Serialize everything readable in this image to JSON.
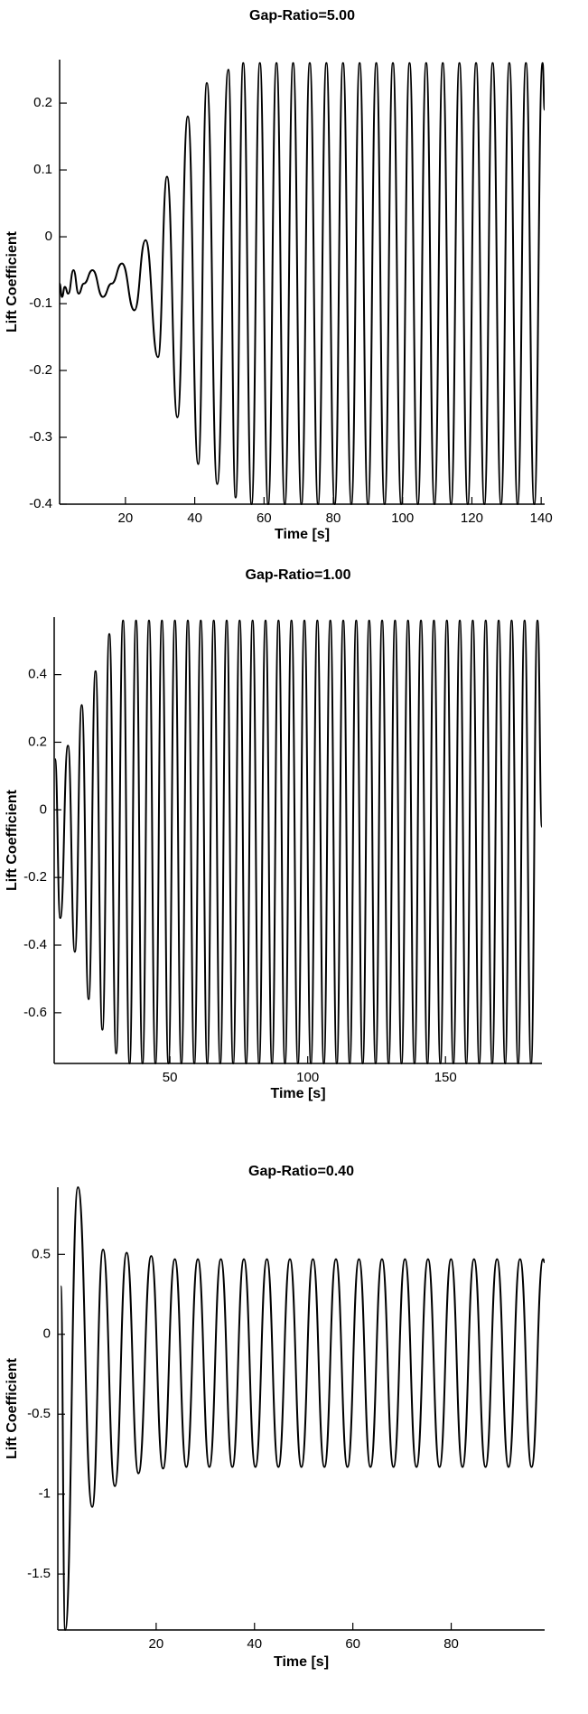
{
  "chart_data": [
    {
      "type": "line",
      "title": "Gap-Ratio=5.00",
      "x_label": "Time [s]",
      "y_label": "Lift Coefficient",
      "color": "#000000",
      "x": [
        1,
        1.7,
        2.5,
        3.5,
        5,
        6.5,
        8,
        10.5,
        13.5,
        16,
        19,
        22.6,
        25.8,
        29.4,
        32,
        35,
        38,
        41,
        43.5,
        46.5,
        49.7,
        51.8,
        54,
        56.4,
        58.8,
        61.2,
        63.6,
        66,
        68.4,
        70.8,
        73.2,
        75.6,
        78,
        80.4,
        82.8,
        85.2,
        87.6,
        90,
        92.4,
        94.8,
        97.2,
        99.6,
        102,
        104.4,
        106.8,
        109.2,
        111.6,
        114,
        116.4,
        118.8,
        121.2,
        123.6,
        126,
        128.4,
        130.8,
        133.2,
        135.6,
        138,
        140.4,
        141
      ],
      "values": [
        -0.07,
        -0.09,
        -0.075,
        -0.085,
        -0.05,
        -0.085,
        -0.07,
        -0.05,
        -0.09,
        -0.07,
        -0.04,
        -0.11,
        -0.005,
        -0.18,
        0.09,
        -0.27,
        0.18,
        -0.34,
        0.23,
        -0.37,
        0.25,
        -0.39,
        0.26,
        -0.4,
        0.26,
        -0.4,
        0.26,
        -0.4,
        0.26,
        -0.4,
        0.26,
        -0.4,
        0.26,
        -0.4,
        0.26,
        -0.4,
        0.26,
        -0.4,
        0.26,
        -0.4,
        0.26,
        -0.4,
        0.26,
        -0.4,
        0.26,
        -0.4,
        0.26,
        -0.4,
        0.26,
        -0.4,
        0.26,
        -0.4,
        0.26,
        -0.4,
        0.26,
        -0.4,
        0.26,
        -0.4,
        0.26,
        0.19
      ],
      "xlim": [
        1,
        141
      ],
      "ylim": [
        -0.4,
        0.265
      ],
      "xticks": [
        20,
        40,
        60,
        80,
        100,
        120,
        140
      ],
      "yticks": [
        -0.4,
        -0.3,
        -0.2,
        -0.1,
        0,
        0.1,
        0.2
      ]
    },
    {
      "type": "line",
      "title": "Gap-Ratio=1.00",
      "x_label": "Time [s]",
      "y_label": "Lift Coefficient",
      "color": "#000000",
      "x": [
        8.3,
        10.2,
        13,
        15.5,
        18,
        20.5,
        23,
        25.5,
        28,
        30.5,
        33,
        35.35,
        37.7,
        40.05,
        42.4,
        44.75,
        47.1,
        49.45,
        51.8,
        54.15,
        56.5,
        58.85,
        61.2,
        63.55,
        65.9,
        68.25,
        70.6,
        72.95,
        75.3,
        77.65,
        80,
        82.35,
        84.7,
        87.05,
        89.4,
        91.75,
        94.1,
        96.45,
        98.8,
        101.15,
        103.5,
        105.85,
        108.2,
        110.55,
        112.9,
        115.25,
        117.6,
        119.95,
        122.3,
        124.65,
        127,
        129.35,
        131.7,
        134.05,
        136.4,
        138.75,
        141.1,
        143.45,
        145.8,
        148.15,
        150.5,
        152.85,
        155.2,
        157.55,
        159.9,
        162.25,
        164.6,
        166.95,
        169.3,
        171.65,
        174,
        176.35,
        178.7,
        181.05,
        183.4,
        185
      ],
      "values": [
        0.15,
        -0.32,
        0.19,
        -0.42,
        0.31,
        -0.56,
        0.41,
        -0.65,
        0.52,
        -0.72,
        0.56,
        -0.75,
        0.56,
        -0.75,
        0.56,
        -0.75,
        0.56,
        -0.75,
        0.56,
        -0.75,
        0.56,
        -0.75,
        0.56,
        -0.75,
        0.56,
        -0.75,
        0.56,
        -0.75,
        0.56,
        -0.75,
        0.56,
        -0.75,
        0.56,
        -0.75,
        0.56,
        -0.75,
        0.56,
        -0.75,
        0.56,
        -0.75,
        0.56,
        -0.75,
        0.56,
        -0.75,
        0.56,
        -0.75,
        0.56,
        -0.75,
        0.56,
        -0.75,
        0.56,
        -0.75,
        0.56,
        -0.75,
        0.56,
        -0.75,
        0.56,
        -0.75,
        0.56,
        -0.75,
        0.56,
        -0.75,
        0.56,
        -0.75,
        0.56,
        -0.75,
        0.56,
        -0.75,
        0.56,
        -0.75,
        0.56,
        -0.75,
        0.56,
        -0.75,
        0.56,
        -0.05
      ],
      "xlim": [
        8,
        185
      ],
      "ylim": [
        -0.75,
        0.57
      ],
      "xticks": [
        50,
        100,
        150
      ],
      "yticks": [
        -0.6,
        -0.4,
        -0.2,
        0,
        0.2,
        0.4
      ]
    },
    {
      "type": "line",
      "title": "Gap-Ratio=0.40",
      "x_label": "Time [s]",
      "y_label": "Lift Coefficient",
      "color": "#000000",
      "x": [
        0.6,
        1.5,
        4.1,
        7,
        9.2,
        11.6,
        14,
        16.4,
        19,
        21.4,
        23.8,
        26.14,
        28.48,
        30.82,
        33.16,
        35.5,
        37.84,
        40.18,
        42.52,
        44.86,
        47.2,
        49.54,
        51.88,
        54.22,
        56.56,
        58.9,
        61.24,
        63.58,
        65.92,
        68.26,
        70.6,
        72.94,
        75.28,
        77.62,
        79.96,
        82.3,
        84.64,
        86.98,
        89.32,
        91.66,
        94,
        96.34,
        98.68,
        99
      ],
      "values": [
        0.3,
        -1.85,
        0.92,
        -1.08,
        0.53,
        -0.95,
        0.51,
        -0.87,
        0.49,
        -0.84,
        0.47,
        -0.83,
        0.47,
        -0.83,
        0.47,
        -0.83,
        0.47,
        -0.83,
        0.47,
        -0.83,
        0.47,
        -0.83,
        0.47,
        -0.83,
        0.47,
        -0.83,
        0.47,
        -0.83,
        0.47,
        -0.83,
        0.47,
        -0.83,
        0.47,
        -0.83,
        0.47,
        -0.83,
        0.47,
        -0.83,
        0.47,
        -0.83,
        0.47,
        -0.83,
        0.47,
        0.45
      ],
      "xlim": [
        0,
        99
      ],
      "ylim": [
        -1.85,
        0.92
      ],
      "xticks": [
        20,
        40,
        60,
        80
      ],
      "yticks": [
        -1.5,
        -1,
        -0.5,
        0,
        0.5
      ]
    }
  ]
}
